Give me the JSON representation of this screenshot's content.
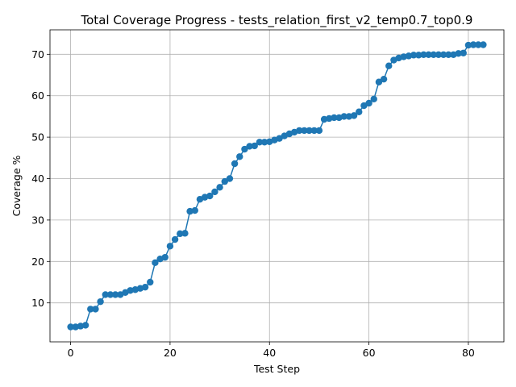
{
  "chart_data": {
    "type": "line",
    "title": "Total Coverage Progress - tests_relation_first_v2_temp0.7_top0.9",
    "xlabel": "Test Step",
    "ylabel": "Coverage %",
    "xlim": [
      -4.15,
      87.15
    ],
    "ylim": [
      0.6,
      75.9
    ],
    "xticks": [
      0,
      20,
      40,
      60,
      80
    ],
    "yticks": [
      10,
      20,
      30,
      40,
      50,
      60,
      70
    ],
    "grid": true,
    "marker": "circle",
    "color": "#1f77b4",
    "x": [
      0,
      1,
      2,
      3,
      4,
      5,
      6,
      7,
      8,
      9,
      10,
      11,
      12,
      13,
      14,
      15,
      16,
      17,
      18,
      19,
      20,
      21,
      22,
      23,
      24,
      25,
      26,
      27,
      28,
      29,
      30,
      31,
      32,
      33,
      34,
      35,
      36,
      37,
      38,
      39,
      40,
      41,
      42,
      43,
      44,
      45,
      46,
      47,
      48,
      49,
      50,
      51,
      52,
      53,
      54,
      55,
      56,
      57,
      58,
      59,
      60,
      61,
      62,
      63,
      64,
      65,
      66,
      67,
      68,
      69,
      70,
      71,
      72,
      73,
      74,
      75,
      76,
      77,
      78,
      79,
      80,
      81,
      82,
      83
    ],
    "y": [
      4.2,
      4.2,
      4.4,
      4.6,
      8.5,
      8.5,
      10.3,
      12.0,
      12.0,
      12.0,
      12.0,
      12.5,
      13.0,
      13.2,
      13.5,
      13.8,
      15.0,
      19.7,
      20.6,
      21.0,
      23.7,
      25.3,
      26.7,
      26.8,
      32.1,
      32.3,
      35.0,
      35.5,
      35.8,
      36.8,
      37.9,
      39.3,
      40.0,
      43.6,
      45.3,
      47.1,
      47.8,
      47.9,
      48.8,
      48.8,
      48.9,
      49.3,
      49.7,
      50.3,
      50.8,
      51.2,
      51.6,
      51.6,
      51.6,
      51.6,
      51.6,
      54.3,
      54.5,
      54.7,
      54.7,
      55.0,
      55.0,
      55.2,
      56.1,
      57.6,
      58.2,
      59.2,
      63.3,
      64.0,
      67.2,
      68.6,
      69.1,
      69.4,
      69.6,
      69.8,
      69.8,
      69.9,
      69.9,
      69.9,
      69.9,
      69.9,
      69.9,
      69.9,
      70.2,
      70.3,
      72.2,
      72.3,
      72.3,
      72.3
    ]
  }
}
